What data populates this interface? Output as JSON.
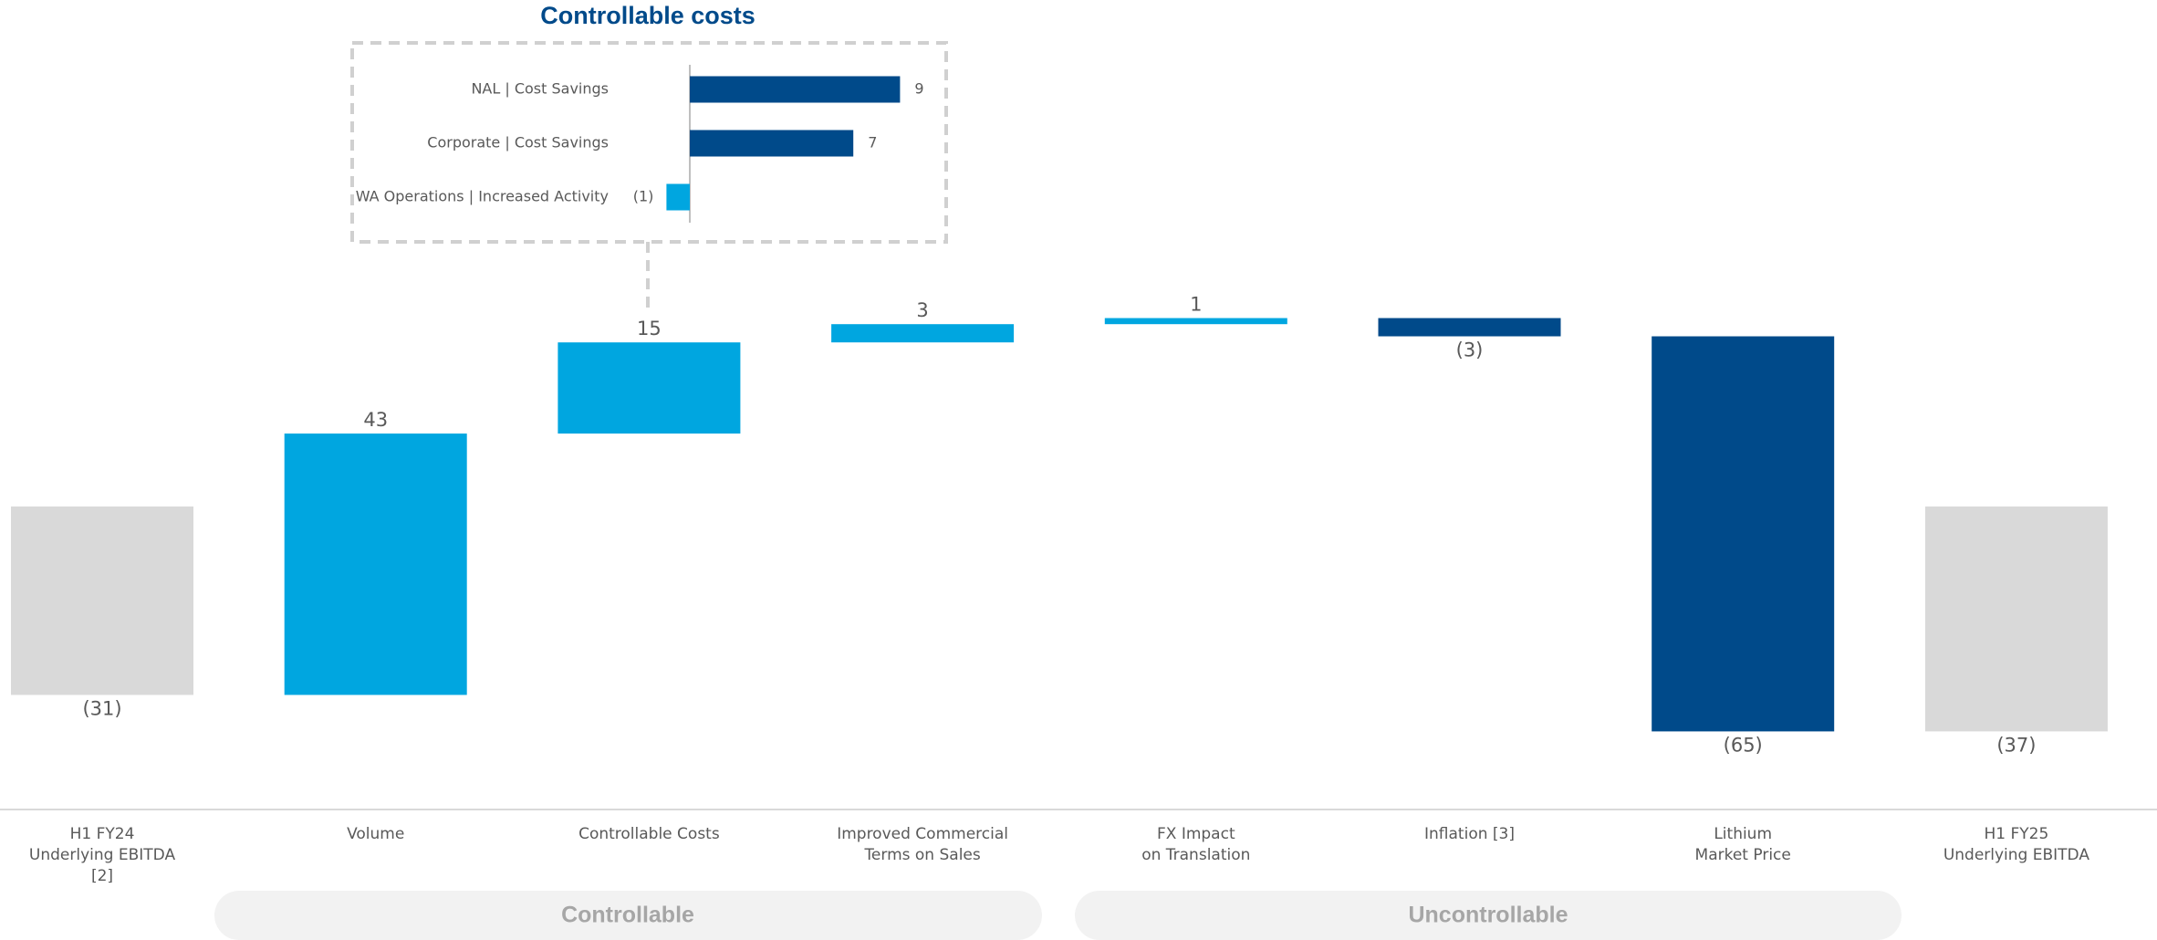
{
  "chart_data": [
    {
      "type": "waterfall",
      "categories": [
        "H1 FY24\nUnderlying EBITDA\n[2]",
        "Volume",
        "Controllable Costs",
        "Improved Commercial\nTerms on Sales",
        "FX Impact\non Translation",
        "Inflation [3]",
        "Lithium\nMarket Price",
        "H1 FY25\nUnderlying EBITDA"
      ],
      "values": [
        -31,
        43,
        15,
        3,
        1,
        -3,
        -65,
        -37
      ],
      "value_labels": [
        "(31)",
        "43",
        "15",
        "3",
        "1",
        "(3)",
        "(65)",
        "(37)"
      ],
      "measure": [
        "absolute",
        "relative",
        "relative",
        "relative",
        "relative",
        "relative",
        "relative",
        "absolute"
      ],
      "colors": [
        "#d9d9d9",
        "#00a6e0",
        "#00a6e0",
        "#00a6e0",
        "#00a6e0",
        "#004a8a",
        "#004a8a",
        "#d9d9d9"
      ],
      "group_labels": [
        "Controllable",
        "Uncontrollable"
      ]
    },
    {
      "type": "hbar",
      "title": "Controllable costs",
      "categories": [
        "NAL | Cost Savings",
        "Corporate | Cost Savings",
        "WA Operations | Increased Activity"
      ],
      "values": [
        9,
        7,
        -1
      ],
      "value_labels": [
        "9",
        "7",
        "(1)"
      ],
      "colors": [
        "#004a8a",
        "#004a8a",
        "#00a6e0"
      ]
    }
  ]
}
